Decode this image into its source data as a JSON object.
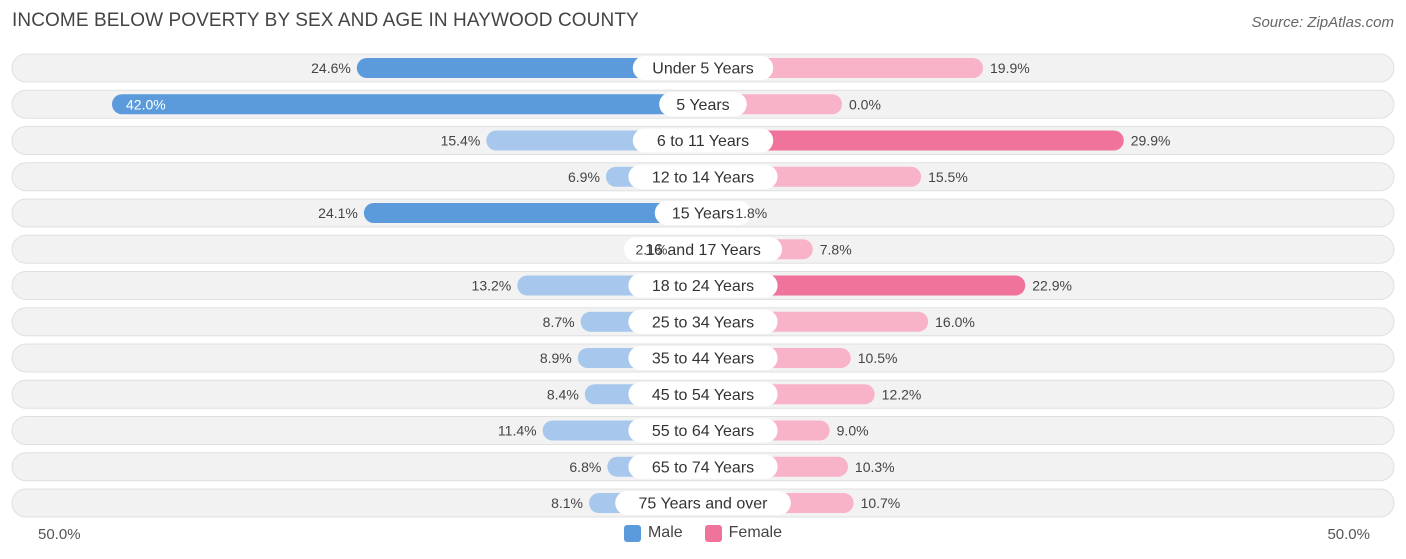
{
  "title": "INCOME BELOW POVERTY BY SEX AND AGE IN HAYWOOD COUNTY",
  "source": "Source: ZipAtlas.com",
  "colors": {
    "male_dark": "#5b9bdc",
    "male_light": "#a7c8ec",
    "female_dark": "#f0739b",
    "female_light": "#f8b3c8",
    "row_bg": "#f2f2f2"
  },
  "chart_data": {
    "type": "bar",
    "orientation": "horizontal-diverging",
    "categories": [
      "Under 5 Years",
      "5 Years",
      "6 to 11 Years",
      "12 to 14 Years",
      "15 Years",
      "16 and 17 Years",
      "18 to 24 Years",
      "25 to 34 Years",
      "35 to 44 Years",
      "45 to 54 Years",
      "55 to 64 Years",
      "65 to 74 Years",
      "75 Years and over"
    ],
    "series": [
      {
        "name": "Male",
        "values": [
          24.6,
          42.0,
          15.4,
          6.9,
          24.1,
          2.1,
          13.2,
          8.7,
          8.9,
          8.4,
          11.4,
          6.8,
          8.1
        ],
        "labels": [
          "24.6%",
          "42.0%",
          "15.4%",
          "6.9%",
          "24.1%",
          "2.1%",
          "13.2%",
          "8.7%",
          "8.9%",
          "8.4%",
          "11.4%",
          "6.8%",
          "8.1%"
        ]
      },
      {
        "name": "Female",
        "values": [
          19.9,
          0.0,
          29.9,
          15.5,
          1.8,
          7.8,
          22.9,
          16.0,
          10.5,
          12.2,
          9.0,
          10.3,
          10.7
        ],
        "labels": [
          "19.9%",
          "0.0%",
          "29.9%",
          "15.5%",
          "1.8%",
          "7.8%",
          "22.9%",
          "16.0%",
          "10.5%",
          "12.2%",
          "9.0%",
          "10.3%",
          "10.7%"
        ]
      }
    ],
    "xlim": [
      -50,
      50
    ],
    "axis_labels": {
      "left": "50.0%",
      "right": "50.0%"
    },
    "legend": {
      "position": "bottom-center",
      "items": [
        "Male",
        "Female"
      ]
    }
  }
}
